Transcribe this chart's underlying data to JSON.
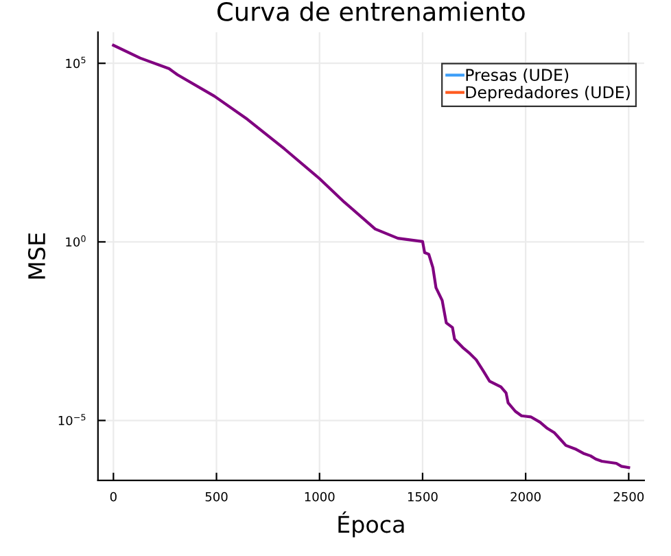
{
  "chart_data": {
    "type": "line",
    "title": "Curva de entrenamiento",
    "xlabel": "Época",
    "ylabel": "MSE",
    "log": "y",
    "grid": true,
    "legend": "top right",
    "xlim": [
      -75,
      2575
    ],
    "xticks": [
      0,
      500,
      1000,
      1500,
      2000,
      2500
    ],
    "ylim": [
      2.1e-07,
      740000.0
    ],
    "yticks": [
      {
        "value": 100000.0,
        "label": "10$^{5}$"
      },
      {
        "value": 1,
        "label": "10$^{0}$"
      },
      {
        "value": 1e-05,
        "label": "10$^{−5}$"
      }
    ],
    "series": [
      {
        "name": "Presas (UDE)",
        "color": "#3b9df8"
      },
      {
        "name": "Depredadores (UDE)",
        "color": "#ff5a1f"
      },
      {
        "color": "#800080",
        "x": [
          0,
          130,
          270,
          310,
          490,
          650,
          830,
          1000,
          1120,
          1270,
          1380,
          1500,
          1510,
          1530,
          1550,
          1565,
          1595,
          1615,
          1645,
          1655,
          1695,
          1725,
          1760,
          1795,
          1825,
          1880,
          1905,
          1915,
          1950,
          1980,
          2025,
          2070,
          2105,
          2140,
          2170,
          2195,
          2240,
          2280,
          2315,
          2340,
          2370,
          2440,
          2465,
          2500
        ],
        "values": [
          320000.0,
          140000.0,
          71000.0,
          48000.0,
          12000.0,
          2700.0,
          400,
          59,
          13,
          2.3,
          1.26,
          1.02,
          0.5,
          0.45,
          0.19,
          0.052,
          0.023,
          0.0054,
          0.004,
          0.0019,
          0.0011,
          0.00079,
          0.0005,
          0.00024,
          0.000126,
          8.7e-05,
          5.9e-05,
          3.1e-05,
          1.8e-05,
          1.35e-05,
          1.26e-05,
          8.9e-06,
          6e-06,
          4.5e-06,
          2.9e-06,
          2e-06,
          1.6e-06,
          1.2e-06,
          1.02e-06,
          8.3e-07,
          7.2e-07,
          6.3e-07,
          5.2e-07,
          4.8e-07
        ]
      }
    ]
  }
}
